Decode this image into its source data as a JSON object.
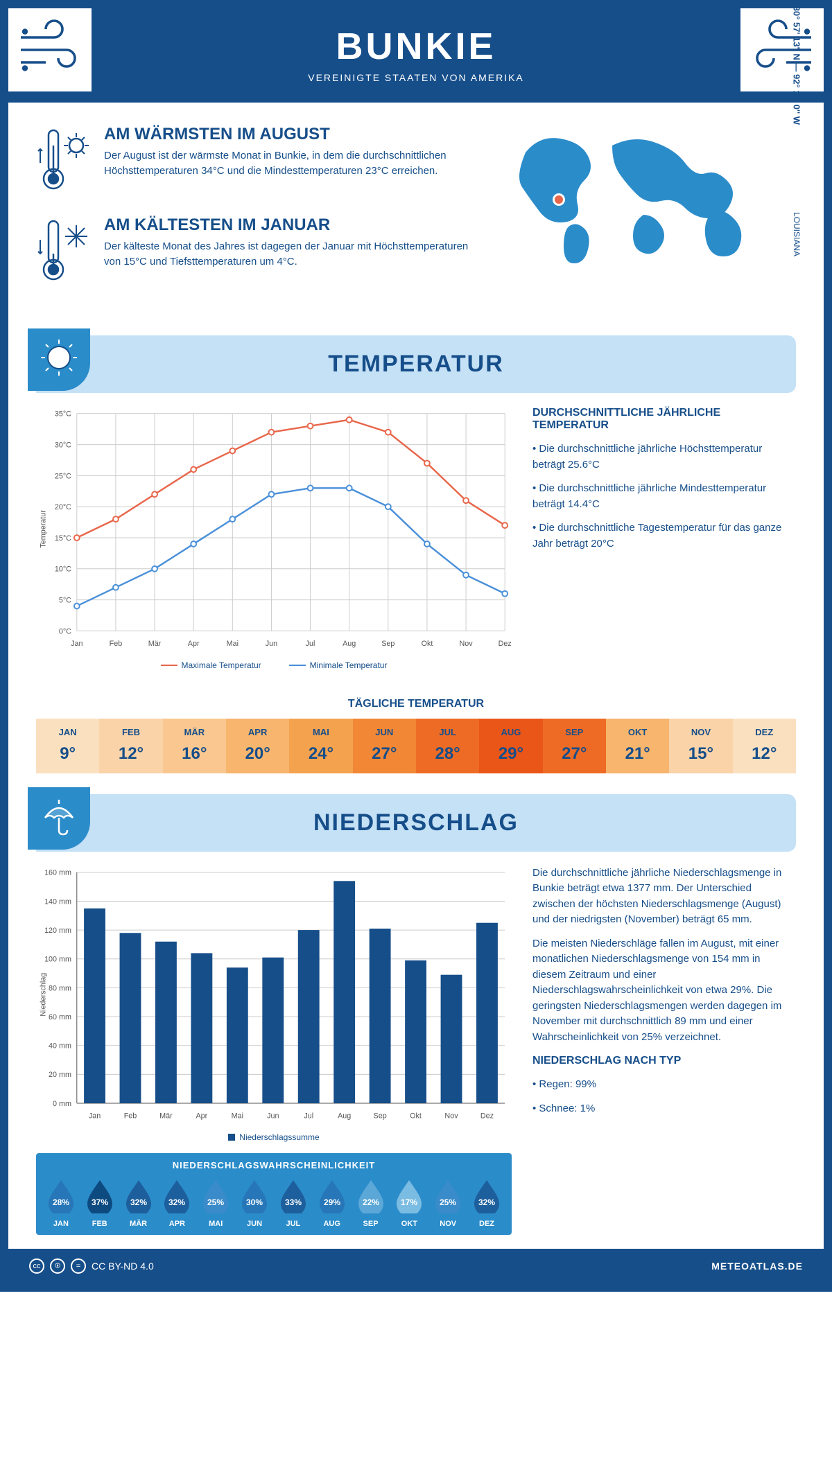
{
  "header": {
    "city": "BUNKIE",
    "country": "VEREINIGTE STAATEN VON AMERIKA"
  },
  "coords": "30° 57' 13'' N — 92° 11' 0'' W",
  "state": "LOUISIANA",
  "facts": {
    "warm": {
      "title": "AM WÄRMSTEN IM AUGUST",
      "text": "Der August ist der wärmste Monat in Bunkie, in dem die durchschnittlichen Höchsttemperaturen 34°C und die Mindesttemperaturen 23°C erreichen."
    },
    "cold": {
      "title": "AM KÄLTESTEN IM JANUAR",
      "text": "Der kälteste Monat des Jahres ist dagegen der Januar mit Höchsttemperaturen von 15°C und Tiefsttemperaturen um 4°C."
    }
  },
  "sections": {
    "temp": "TEMPERATUR",
    "rain": "NIEDERSCHLAG"
  },
  "colors": {
    "primary": "#164e8a",
    "accent": "#2b8cca",
    "pale": "#c5e1f6",
    "max_line": "#e8664a",
    "min_line": "#4a90d9",
    "grid": "#cccccc",
    "bar": "#164e8a"
  },
  "months": [
    "Jan",
    "Feb",
    "Mär",
    "Apr",
    "Mai",
    "Jun",
    "Jul",
    "Aug",
    "Sep",
    "Okt",
    "Nov",
    "Dez"
  ],
  "months_upper": [
    "JAN",
    "FEB",
    "MÄR",
    "APR",
    "MAI",
    "JUN",
    "JUL",
    "AUG",
    "SEP",
    "OKT",
    "NOV",
    "DEZ"
  ],
  "temp_chart": {
    "ylabel": "Temperatur",
    "ylim": [
      0,
      35
    ],
    "ytick_step": 5,
    "max": [
      15,
      18,
      22,
      26,
      29,
      32,
      33,
      34,
      32,
      27,
      21,
      17
    ],
    "min": [
      4,
      7,
      10,
      14,
      18,
      22,
      23,
      23,
      20,
      14,
      9,
      6
    ],
    "legend": {
      "max": "Maximale Temperatur",
      "min": "Minimale Temperatur"
    }
  },
  "temp_text": {
    "title": "DURCHSCHNITTLICHE JÄHRLICHE TEMPERATUR",
    "b1": "• Die durchschnittliche jährliche Höchsttemperatur beträgt 25.6°C",
    "b2": "• Die durchschnittliche jährliche Mindesttemperatur beträgt 14.4°C",
    "b3": "• Die durchschnittliche Tagestemperatur für das ganze Jahr beträgt 20°C"
  },
  "daily": {
    "title": "TÄGLICHE TEMPERATUR",
    "values": [
      "9°",
      "12°",
      "16°",
      "20°",
      "24°",
      "27°",
      "28°",
      "29°",
      "27°",
      "21°",
      "15°",
      "12°"
    ],
    "bg": [
      "#fbe0c0",
      "#fad3a8",
      "#f9c78f",
      "#f7b56e",
      "#f5a24f",
      "#f28735",
      "#ee6b25",
      "#ea5518",
      "#ee6b25",
      "#f7b56e",
      "#fad3a8",
      "#fbe0c0"
    ]
  },
  "rain_chart": {
    "ylabel": "Niederschlag",
    "ylim": [
      0,
      160
    ],
    "ytick_step": 20,
    "values": [
      135,
      118,
      112,
      104,
      94,
      101,
      120,
      154,
      121,
      99,
      89,
      125
    ],
    "legend": "Niederschlagssumme"
  },
  "rain_text": {
    "p1": "Die durchschnittliche jährliche Niederschlagsmenge in Bunkie beträgt etwa 1377 mm. Der Unterschied zwischen der höchsten Niederschlagsmenge (August) und der niedrigsten (November) beträgt 65 mm.",
    "p2": "Die meisten Niederschläge fallen im August, mit einer monatlichen Niederschlagsmenge von 154 mm in diesem Zeitraum und einer Niederschlagswahrscheinlichkeit von etwa 29%. Die geringsten Niederschlagsmengen werden dagegen im November mit durchschnittlich 89 mm und einer Wahrscheinlichkeit von 25% verzeichnet.",
    "type_title": "NIEDERSCHLAG NACH TYP",
    "type1": "• Regen: 99%",
    "type2": "• Schnee: 1%"
  },
  "prob": {
    "title": "NIEDERSCHLAGSWAHRSCHEINLICHKEIT",
    "values": [
      "28%",
      "37%",
      "32%",
      "32%",
      "25%",
      "30%",
      "33%",
      "29%",
      "22%",
      "17%",
      "25%",
      "32%"
    ],
    "shades": [
      "#2676b8",
      "#0d4a80",
      "#1d5f9c",
      "#1d5f9c",
      "#3a8bc9",
      "#2676b8",
      "#1d5f9c",
      "#2676b8",
      "#5ba8d8",
      "#7bbce2",
      "#3a8bc9",
      "#1d5f9c"
    ]
  },
  "footer": {
    "license": "CC BY-ND 4.0",
    "site": "METEOATLAS.DE"
  }
}
